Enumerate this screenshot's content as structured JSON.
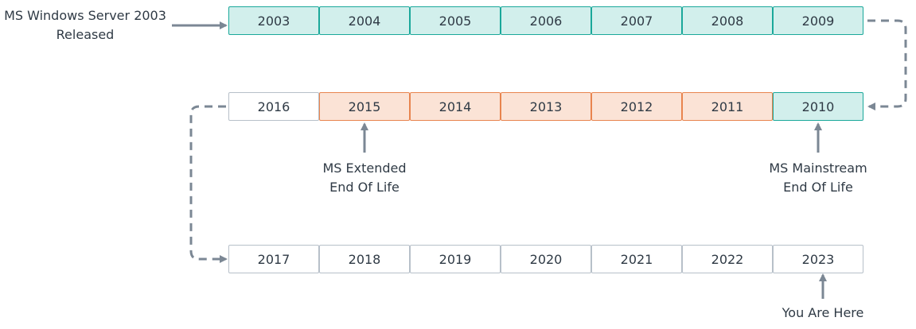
{
  "colors": {
    "teal_fill": "#d2efec",
    "teal_border": "#1aa89a",
    "orange_fill": "#fbe3d6",
    "orange_border": "#e8844e",
    "plain_border": "#b7c0c9",
    "connector": "#7b8794",
    "text": "#2f3a45"
  },
  "rows": [
    {
      "years": [
        {
          "label": "2003",
          "status": "teal"
        },
        {
          "label": "2004",
          "status": "teal"
        },
        {
          "label": "2005",
          "status": "teal"
        },
        {
          "label": "2006",
          "status": "teal"
        },
        {
          "label": "2007",
          "status": "teal"
        },
        {
          "label": "2008",
          "status": "teal"
        },
        {
          "label": "2009",
          "status": "teal"
        }
      ]
    },
    {
      "years": [
        {
          "label": "2016",
          "status": "plain"
        },
        {
          "label": "2015",
          "status": "orange"
        },
        {
          "label": "2014",
          "status": "orange"
        },
        {
          "label": "2013",
          "status": "orange"
        },
        {
          "label": "2012",
          "status": "orange"
        },
        {
          "label": "2011",
          "status": "orange"
        },
        {
          "label": "2010",
          "status": "teal"
        }
      ]
    },
    {
      "years": [
        {
          "label": "2017",
          "status": "plain"
        },
        {
          "label": "2018",
          "status": "plain"
        },
        {
          "label": "2019",
          "status": "plain"
        },
        {
          "label": "2020",
          "status": "plain"
        },
        {
          "label": "2021",
          "status": "plain"
        },
        {
          "label": "2022",
          "status": "plain"
        },
        {
          "label": "2023",
          "status": "plain"
        }
      ]
    }
  ],
  "annotations": {
    "release": {
      "line1": "MS Windows Server 2003",
      "line2": "Released"
    },
    "mainstream": {
      "line1": "MS Mainstream",
      "line2": "End Of Life"
    },
    "extended": {
      "line1": "MS Extended",
      "line2": "End Of Life"
    },
    "current": {
      "line1": "You Are Here"
    }
  }
}
